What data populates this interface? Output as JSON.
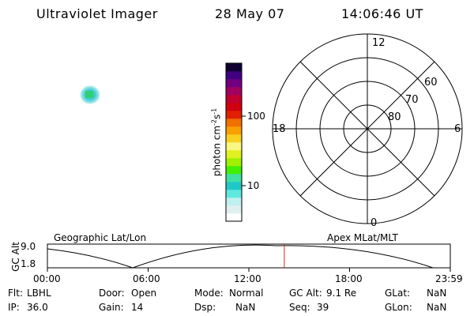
{
  "header": {
    "instrument": "Ultraviolet Imager",
    "date": "28 May 07",
    "time": "14:06:46 UT"
  },
  "colorbar": {
    "unit_label": "photon cm",
    "unit_sup_1": "-2",
    "unit_s": "s",
    "unit_sup_2": "-1",
    "tick_labels": [
      "100",
      "10"
    ],
    "colors": [
      "#ffffff",
      "#e0f0f0",
      "#c0f0f0",
      "#60e8e0",
      "#20c8c8",
      "#40e0a0",
      "#40f000",
      "#a0f000",
      "#e0f020",
      "#f8f880",
      "#f8d020",
      "#f8a000",
      "#f07000",
      "#e02000",
      "#d00010",
      "#c00030",
      "#a00060",
      "#700080",
      "#400080",
      "#100030"
    ]
  },
  "polar_plot": {
    "mlt_labels": {
      "top": "12",
      "left": "18",
      "right": "6",
      "bottom": "0"
    },
    "lat_labels": [
      "60",
      "70",
      "80"
    ]
  },
  "timeline": {
    "left_title": "Geographic Lat/Lon",
    "right_title": "Apex MLat/MLT",
    "ylabel": "GC Alt",
    "y_ticks": [
      "9.0",
      "1.8"
    ],
    "x_ticks": [
      "00:00",
      "06:00",
      "12:00",
      "18:00",
      "23:59"
    ],
    "marker_time": "14:06:46",
    "marker_color": "#e02020"
  },
  "status": {
    "filter": {
      "label": "Flt:",
      "value": "LBHL"
    },
    "door": {
      "label": "Door:",
      "value": "Open"
    },
    "mode": {
      "label": "Mode:",
      "value": "Normal"
    },
    "gc_alt": {
      "label": "GC Alt:",
      "value": "9.1 Re"
    },
    "glat": {
      "label": "GLat:",
      "value": "NaN"
    },
    "ip": {
      "label": "IP:",
      "value": "36.0"
    },
    "gain": {
      "label": "Gain:",
      "value": "14"
    },
    "dsp": {
      "label": "Dsp:",
      "value": "NaN"
    },
    "seq": {
      "label": "Seq:",
      "value": "39"
    },
    "glon": {
      "label": "GLon:",
      "value": "NaN"
    }
  }
}
